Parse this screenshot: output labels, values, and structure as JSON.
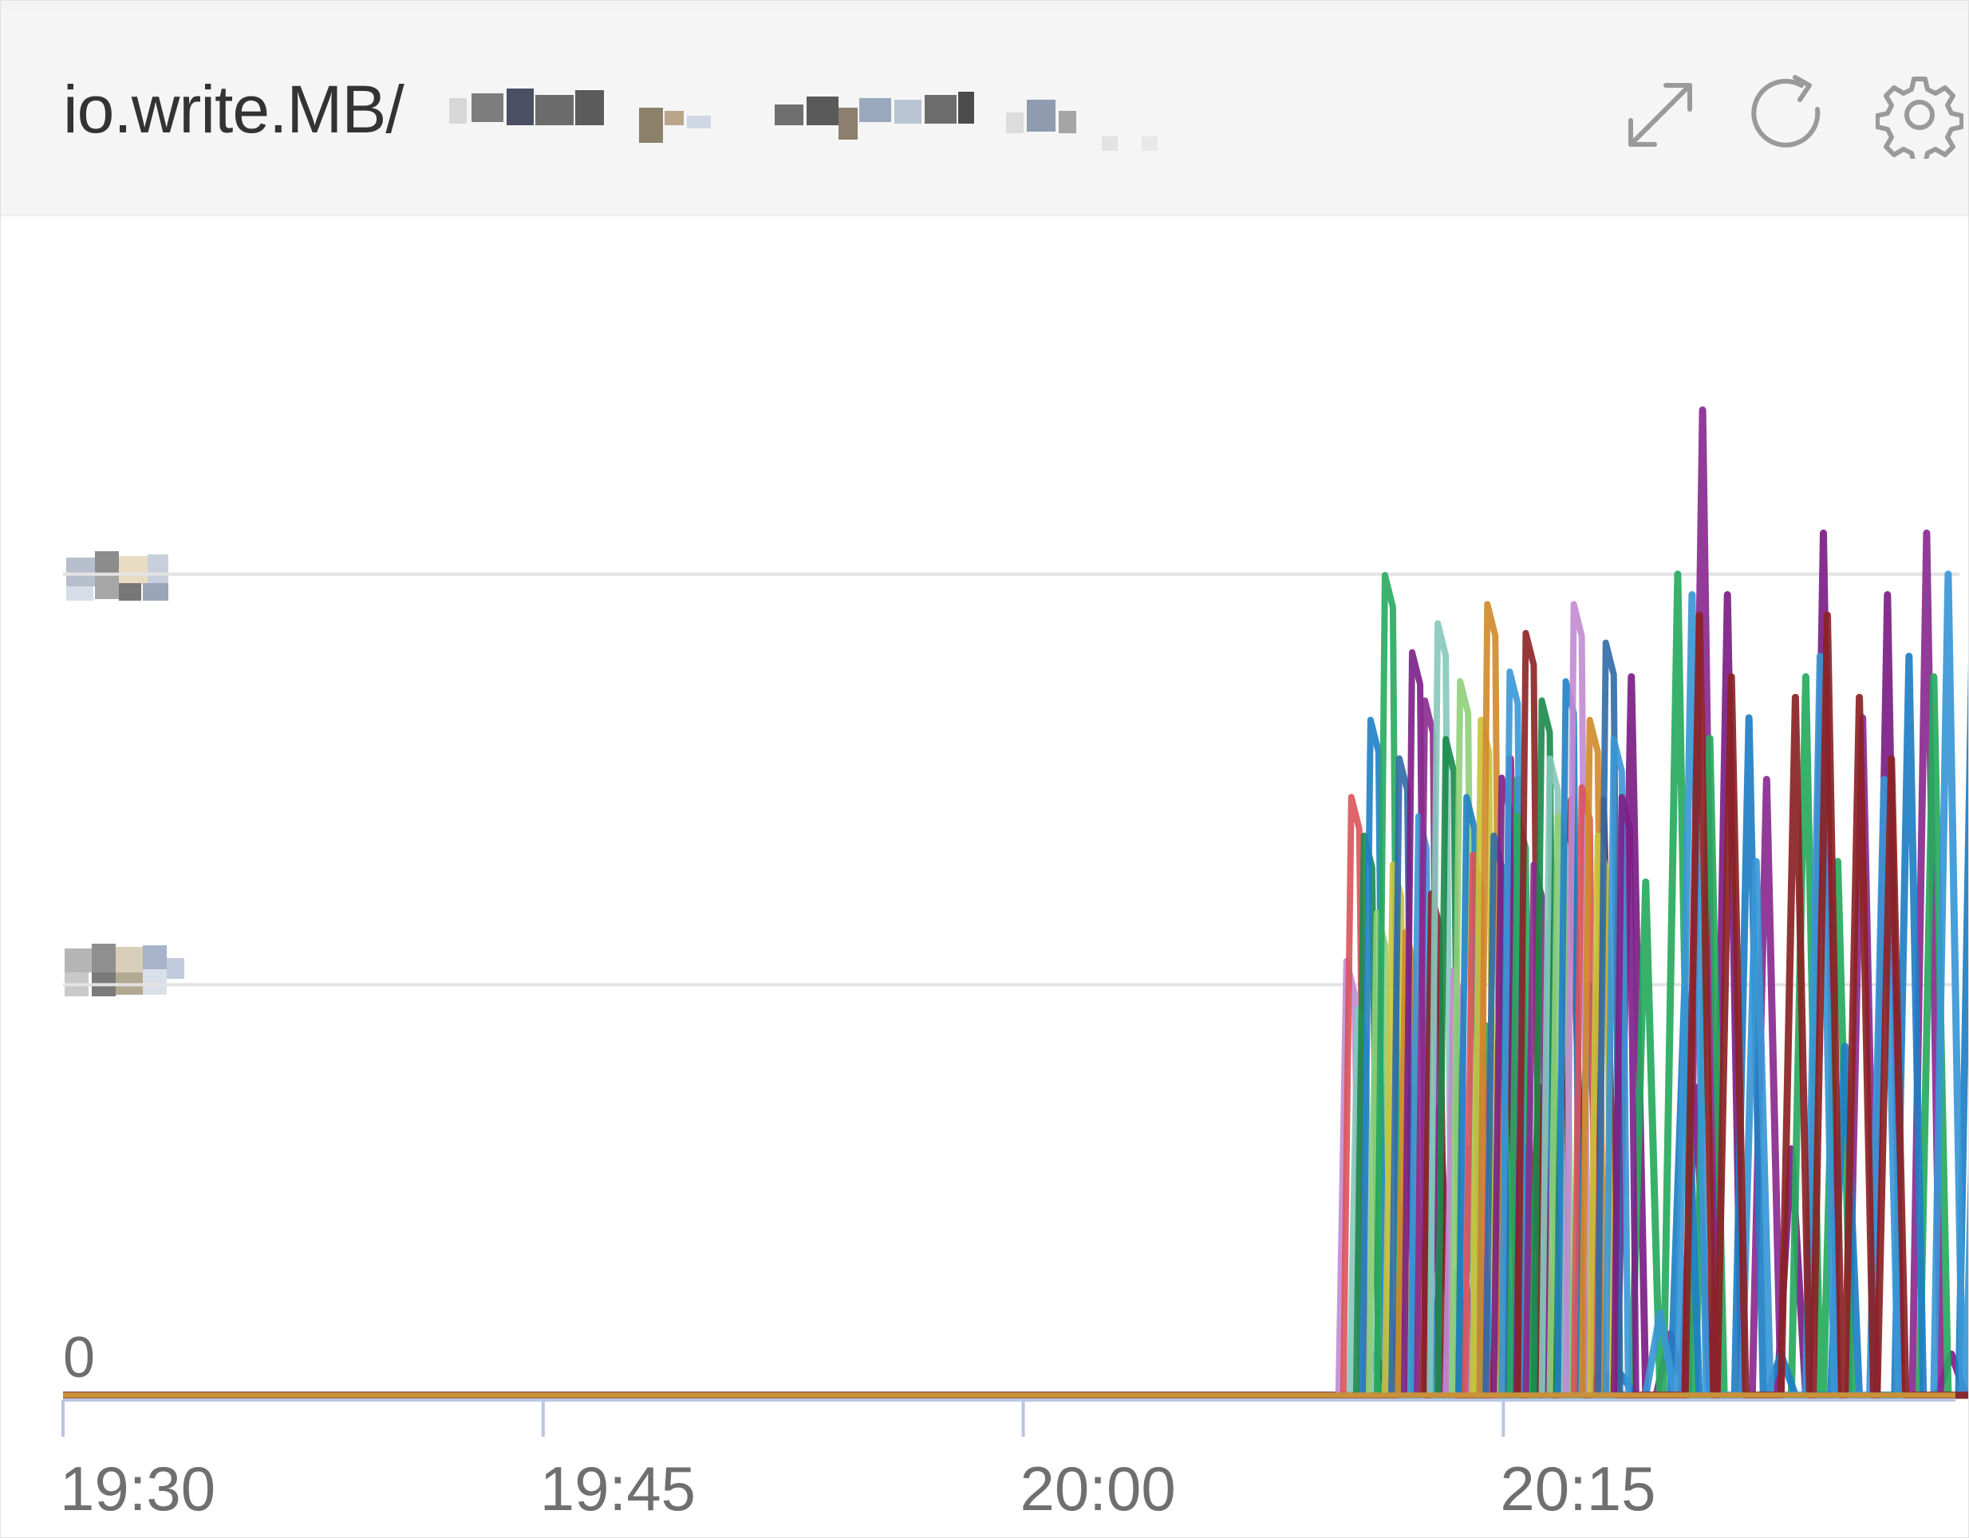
{
  "panel": {
    "title": "io.write.MB/"
  },
  "icons": {
    "expand": "expand-icon",
    "refresh": "refresh-icon",
    "settings": "gear-icon"
  },
  "colors": {
    "grid": "#e3e3e3",
    "axis": "#b9c6e4",
    "baseline": "#c8913a",
    "series": [
      "#7b1e86",
      "#8a2a8f",
      "#27aa5e",
      "#1f7fc4",
      "#3a97d6",
      "#8b2224",
      "#d0892a",
      "#c28bd3",
      "#86c8ba",
      "#8fcf7a",
      "#c9c23a",
      "#d9535a",
      "#1a8a4a",
      "#2f6aa6"
    ]
  },
  "chart_data": {
    "type": "line",
    "title": "io.write.MB/",
    "xlabel": "",
    "ylabel": "",
    "x_ticks": [
      "19:30",
      "19:45",
      "20:00",
      "20:15"
    ],
    "y_ticks": [
      "0",
      "200",
      "400"
    ],
    "y_tick_labels_visible": [
      "0"
    ],
    "ylim": [
      0,
      520
    ],
    "x_range": [
      "19:30",
      "20:29"
    ],
    "grid": true,
    "legend": "none",
    "series": [
      {
        "x": [
          "20:10",
          "20:11",
          "20:12",
          "20:13",
          "20:14",
          "20:15",
          "20:16",
          "20:17",
          "20:18",
          "20:19",
          "20:20",
          "20:21",
          "20:22",
          "20:23",
          "20:24",
          "20:25",
          "20:26",
          "20:27",
          "20:28",
          "20:29"
        ],
        "values": [
          0,
          20,
          110,
          140,
          90,
          0,
          0,
          0,
          10,
          350,
          0,
          150,
          390,
          0,
          120,
          420,
          0,
          390,
          0,
          20
        ]
      },
      {
        "x": [
          "20:10",
          "20:11",
          "20:12",
          "20:13",
          "20:14",
          "20:15",
          "20:16",
          "20:17",
          "20:18",
          "20:19",
          "20:20",
          "20:21",
          "20:22",
          "20:23",
          "20:24",
          "20:25",
          "20:26",
          "20:27",
          "20:28",
          "20:29"
        ],
        "values": [
          0,
          0,
          0,
          0,
          80,
          310,
          0,
          0,
          10,
          0,
          30,
          480,
          0,
          300,
          0,
          0,
          330,
          0,
          420,
          0
        ]
      },
      {
        "x": [
          "20:10",
          "20:11",
          "20:12",
          "20:13",
          "20:14",
          "20:15",
          "20:16",
          "20:17",
          "20:18",
          "20:19",
          "20:20",
          "20:21",
          "20:22",
          "20:23",
          "20:24",
          "20:25",
          "20:26",
          "20:27",
          "20:28",
          "20:29"
        ],
        "values": [
          0,
          0,
          0,
          60,
          180,
          300,
          230,
          0,
          0,
          250,
          400,
          320,
          0,
          0,
          350,
          260,
          0,
          0,
          350,
          0
        ]
      },
      {
        "x": [
          "20:10",
          "20:11",
          "20:12",
          "20:13",
          "20:14",
          "20:15",
          "20:16",
          "20:17",
          "20:18",
          "20:19",
          "20:20",
          "20:21",
          "20:22",
          "20:23",
          "20:24",
          "20:25",
          "20:26",
          "20:27",
          "20:28",
          "20:29"
        ],
        "values": [
          0,
          0,
          0,
          0,
          40,
          120,
          260,
          200,
          10,
          0,
          200,
          0,
          330,
          20,
          0,
          170,
          0,
          360,
          0,
          390
        ]
      },
      {
        "x": [
          "20:10",
          "20:11",
          "20:12",
          "20:13",
          "20:14",
          "20:15",
          "20:16",
          "20:17",
          "20:18",
          "20:19",
          "20:20",
          "20:21",
          "20:22",
          "20:23",
          "20:24",
          "20:25",
          "20:26",
          "20:27",
          "20:28",
          "20:29"
        ],
        "values": [
          0,
          0,
          0,
          120,
          110,
          40,
          0,
          0,
          0,
          40,
          390,
          0,
          260,
          0,
          360,
          0,
          300,
          0,
          400,
          270
        ]
      },
      {
        "x": [
          "20:10",
          "20:11",
          "20:12",
          "20:13",
          "20:14",
          "20:15",
          "20:16",
          "20:17",
          "20:18",
          "20:19",
          "20:20",
          "20:21",
          "20:22",
          "20:23",
          "20:24",
          "20:25",
          "20:26",
          "20:27",
          "20:28",
          "20:29"
        ],
        "values": [
          0,
          0,
          150,
          70,
          0,
          200,
          150,
          290,
          290,
          0,
          0,
          380,
          350,
          0,
          340,
          380,
          340,
          310,
          0,
          0
        ]
      }
    ]
  }
}
